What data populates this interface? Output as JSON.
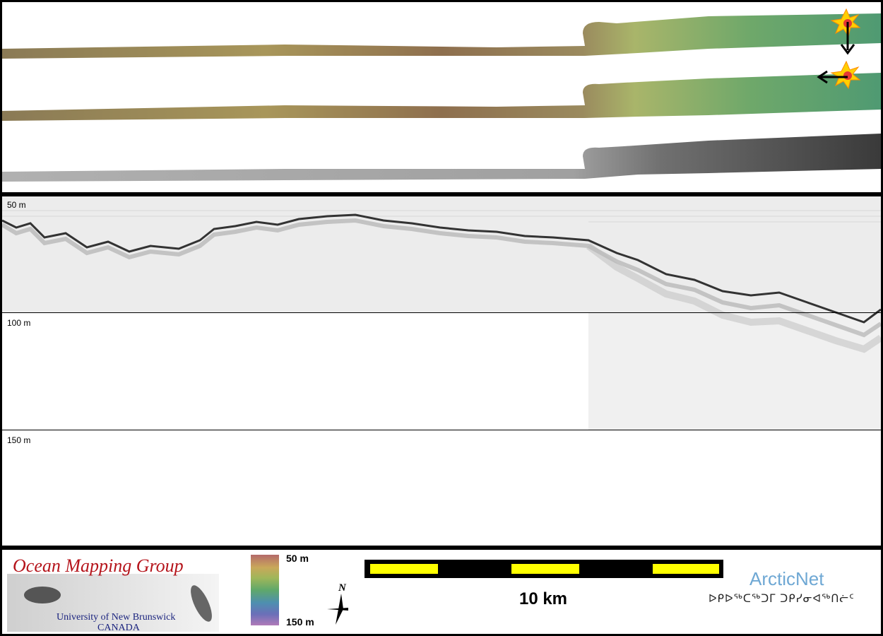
{
  "profile": {
    "depth_labels": [
      "50 m",
      "100 m",
      "150 m"
    ]
  },
  "legend": {
    "organization": "Ocean Mapping Group",
    "university": "University of New Brunswick",
    "country": "CANADA",
    "depth_scale_top": "50 m",
    "depth_scale_bottom": "150 m",
    "north_label": "N",
    "scale_label": "10 km",
    "partner": "ArcticNet",
    "partner_inuktitut": "ᐅᑭᐅᖅᑕᖅᑐᒥ ᑐᑭᓯᓂᐊᖅᑎᓖᑦ"
  },
  "colors": {
    "scale_yellow": "#ffff00",
    "scale_black": "#000000",
    "omg_red": "#b5141b",
    "arcticnet_blue": "#6fa8d4"
  }
}
